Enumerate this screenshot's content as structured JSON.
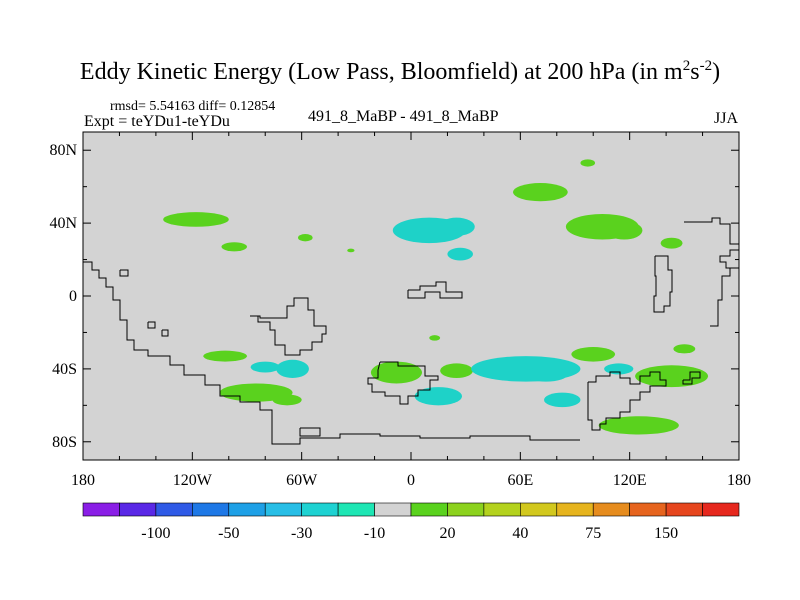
{
  "header": {
    "title": "Eddy Kinetic Energy (Low Pass, Bloomfield) at 200 hPa (in m",
    "title_sup1": "2",
    "title_mid": "s",
    "title_sup2": "-2",
    "title_end": ")",
    "stats": "rmsd= 5.54163 diff= 0.12854",
    "expt": "Expt = teYDu1-teYDu",
    "diff_label": "491_8_MaBP - 491_8_MaBP",
    "season": "JJA"
  },
  "colors": {
    "map_background": "#d3d3d3",
    "coastline": "#000000",
    "palette": [
      "#8a1ee6",
      "#5a28e6",
      "#2f5ae6",
      "#1e78e6",
      "#1ea0e6",
      "#28bee6",
      "#1ed2d2",
      "#1ee6b4",
      "#d3d3d3",
      "#5ad21e",
      "#8cd21e",
      "#b4d21e",
      "#d2c81e",
      "#e6b41e",
      "#e68c1e",
      "#e6641e",
      "#e6461e",
      "#e6281e"
    ],
    "positive_fill": "#5ad21e",
    "positive_inner": "#a0d21e",
    "negative_fill": "#1ed2c8",
    "negative_inner": "#1ec8e6"
  },
  "chart_data": {
    "type": "contour_map",
    "variable": "Eddy Kinetic Energy difference",
    "units": "m2 s-2",
    "level": "200 hPa",
    "x_axis": {
      "range": [
        -180,
        180
      ],
      "ticks": [
        -180,
        -120,
        -60,
        0,
        60,
        120,
        180
      ],
      "tick_labels": [
        "180",
        "120W",
        "60W",
        "0",
        "60E",
        "120E",
        "180"
      ]
    },
    "y_axis": {
      "range": [
        -90,
        90
      ],
      "ticks": [
        80,
        40,
        0,
        -40,
        -80
      ],
      "tick_labels": [
        "80N",
        "40N",
        "0",
        "40S",
        "80S"
      ]
    },
    "colorbar": {
      "levels": [
        -150,
        -100,
        -75,
        -50,
        -40,
        -30,
        -20,
        -10,
        10,
        20,
        30,
        40,
        50,
        75,
        100,
        150,
        200
      ],
      "labels": [
        "-100",
        "-50",
        "-30",
        "-10",
        "20",
        "40",
        "75",
        "150"
      ]
    },
    "anomalies": [
      {
        "lon": -118,
        "lat": 42,
        "dlon": 18,
        "dlat": 4,
        "sign": "pos"
      },
      {
        "lon": -97,
        "lat": 27,
        "dlon": 7,
        "dlat": 2.5,
        "sign": "pos"
      },
      {
        "lon": 10,
        "lat": 36,
        "dlon": 20,
        "dlat": 7,
        "sign": "neg"
      },
      {
        "lon": 25,
        "lat": 38,
        "dlon": 10,
        "dlat": 5,
        "sign": "neg"
      },
      {
        "lon": 27,
        "lat": 23,
        "dlon": 7,
        "dlat": 3.5,
        "sign": "neg"
      },
      {
        "lon": 71,
        "lat": 57,
        "dlon": 15,
        "dlat": 5,
        "sign": "pos"
      },
      {
        "lon": 97,
        "lat": 73,
        "dlon": 4,
        "dlat": 2,
        "sign": "pos"
      },
      {
        "lon": 105,
        "lat": 38,
        "dlon": 20,
        "dlat": 7,
        "sign": "pos"
      },
      {
        "lon": 117,
        "lat": 36,
        "dlon": 10,
        "dlat": 5,
        "sign": "pos"
      },
      {
        "lon": 143,
        "lat": 29,
        "dlon": 6,
        "dlat": 3,
        "sign": "pos"
      },
      {
        "lon": -58,
        "lat": 32,
        "dlon": 4,
        "dlat": 2,
        "sign": "pos"
      },
      {
        "lon": -33,
        "lat": 25,
        "dlon": 2,
        "dlat": 1,
        "sign": "pos"
      },
      {
        "lon": -102,
        "lat": -33,
        "dlon": 12,
        "dlat": 3,
        "sign": "pos"
      },
      {
        "lon": -80,
        "lat": -39,
        "dlon": 8,
        "dlat": 3,
        "sign": "neg"
      },
      {
        "lon": -65,
        "lat": -40,
        "dlon": 9,
        "dlat": 5,
        "sign": "neg"
      },
      {
        "lon": -85,
        "lat": -53,
        "dlon": 20,
        "dlat": 5,
        "sign": "pos"
      },
      {
        "lon": -68,
        "lat": -57,
        "dlon": 8,
        "dlat": 3,
        "sign": "pos"
      },
      {
        "lon": -8,
        "lat": -42,
        "dlon": 14,
        "dlat": 6,
        "sign": "pos"
      },
      {
        "lon": -1,
        "lat": -42,
        "dlon": 7,
        "dlat": 3,
        "sign": "pos"
      },
      {
        "lon": 25,
        "lat": -41,
        "dlon": 9,
        "dlat": 4,
        "sign": "pos"
      },
      {
        "lon": 15,
        "lat": -55,
        "dlon": 13,
        "dlat": 5,
        "sign": "neg"
      },
      {
        "lon": 63,
        "lat": -40,
        "dlon": 30,
        "dlat": 7,
        "sign": "neg"
      },
      {
        "lon": 74,
        "lat": -43,
        "dlon": 12,
        "dlat": 4,
        "sign": "neg"
      },
      {
        "lon": 100,
        "lat": -32,
        "dlon": 12,
        "dlat": 4,
        "sign": "pos"
      },
      {
        "lon": 83,
        "lat": -57,
        "dlon": 10,
        "dlat": 4,
        "sign": "neg"
      },
      {
        "lon": 114,
        "lat": -40,
        "dlon": 8,
        "dlat": 3,
        "sign": "neg"
      },
      {
        "lon": 143,
        "lat": -44,
        "dlon": 20,
        "dlat": 6,
        "sign": "pos"
      },
      {
        "lon": 150,
        "lat": -29,
        "dlon": 6,
        "dlat": 2.5,
        "sign": "pos"
      },
      {
        "lon": 125,
        "lat": -71,
        "dlon": 22,
        "dlat": 5,
        "sign": "pos"
      },
      {
        "lon": 13,
        "lat": -23,
        "dlon": 3,
        "dlat": 1.5,
        "sign": "pos"
      }
    ]
  }
}
